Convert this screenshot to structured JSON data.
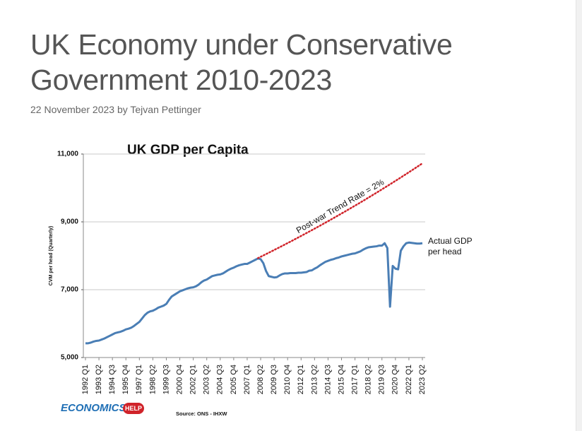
{
  "page": {
    "title": "UK Economy under Conservative Government 2010-2023",
    "byline": "22 November 2023 by Tejvan Pettinger"
  },
  "chart_data": {
    "type": "line",
    "title": "UK GDP per Capita",
    "y_label": "CVM per head (Quarterly)",
    "source": "Source: ONS - IHXW",
    "logo": {
      "text": "ECONOMICS",
      "badge": "HELP"
    },
    "grid": true,
    "ylim": [
      5000,
      11000
    ],
    "yticks": [
      {
        "value": 5000,
        "label": "5,000"
      },
      {
        "value": 7000,
        "label": "7,000"
      },
      {
        "value": 9000,
        "label": "9,000"
      },
      {
        "value": 11000,
        "label": "11,000"
      }
    ],
    "categories": [
      "1992 Q1",
      null,
      null,
      null,
      null,
      "1993 Q2",
      null,
      null,
      null,
      null,
      "1994 Q3",
      null,
      null,
      null,
      null,
      "1995 Q4",
      null,
      null,
      null,
      null,
      "1997 Q1",
      null,
      null,
      null,
      null,
      "1998 Q2",
      null,
      null,
      null,
      null,
      "1999 Q3",
      null,
      null,
      null,
      null,
      "2000 Q4",
      null,
      null,
      null,
      null,
      "2002 Q1",
      null,
      null,
      null,
      null,
      "2003 Q2",
      null,
      null,
      null,
      null,
      "2004 Q3",
      null,
      null,
      null,
      null,
      "2005 Q4",
      null,
      null,
      null,
      null,
      "2007 Q1",
      null,
      null,
      null,
      null,
      "2008 Q2",
      null,
      null,
      null,
      null,
      "2009 Q3",
      null,
      null,
      null,
      null,
      "2010 Q4",
      null,
      null,
      null,
      null,
      "2012 Q1",
      null,
      null,
      null,
      null,
      "2013 Q2",
      null,
      null,
      null,
      null,
      "2014 Q3",
      null,
      null,
      null,
      null,
      "2015 Q4",
      null,
      null,
      null,
      null,
      "2017 Q1",
      null,
      null,
      null,
      null,
      "2018 Q2",
      null,
      null,
      null,
      null,
      "2019 Q3",
      null,
      null,
      null,
      null,
      "2020 Q4",
      null,
      null,
      null,
      null,
      "2022 Q1",
      null,
      null,
      null,
      null,
      "2023 Q2"
    ],
    "series": [
      {
        "name": "Actual GDP per head",
        "color": "#4a7eb5",
        "style": "solid",
        "values": [
          5420,
          5420,
          5440,
          5470,
          5490,
          5500,
          5530,
          5560,
          5600,
          5640,
          5680,
          5720,
          5740,
          5760,
          5790,
          5830,
          5850,
          5880,
          5930,
          5990,
          6050,
          6150,
          6250,
          6320,
          6360,
          6380,
          6420,
          6470,
          6500,
          6530,
          6580,
          6700,
          6800,
          6850,
          6900,
          6950,
          6980,
          7010,
          7040,
          7060,
          7070,
          7100,
          7150,
          7220,
          7270,
          7300,
          7350,
          7400,
          7420,
          7440,
          7450,
          7480,
          7530,
          7580,
          7620,
          7650,
          7690,
          7720,
          7740,
          7760,
          7760,
          7800,
          7840,
          7880,
          7920,
          7900,
          7780,
          7550,
          7400,
          7380,
          7360,
          7370,
          7420,
          7460,
          7480,
          7480,
          7490,
          7490,
          7490,
          7500,
          7500,
          7510,
          7520,
          7560,
          7570,
          7620,
          7660,
          7720,
          7770,
          7820,
          7850,
          7880,
          7900,
          7930,
          7950,
          7980,
          8000,
          8020,
          8040,
          8060,
          8070,
          8100,
          8130,
          8180,
          8220,
          8250,
          8260,
          8270,
          8280,
          8300,
          8300,
          8370,
          8230,
          6500,
          7700,
          7620,
          7600,
          8150,
          8280,
          8370,
          8390,
          8380,
          8370,
          8360,
          8360,
          8370
        ]
      },
      {
        "name": "Post-war Trend Rate = 2%",
        "color": "#d0232a",
        "style": "dotted",
        "values": [
          null,
          null,
          null,
          null,
          null,
          null,
          null,
          null,
          null,
          null,
          null,
          null,
          null,
          null,
          null,
          null,
          null,
          null,
          null,
          null,
          null,
          null,
          null,
          null,
          null,
          null,
          null,
          null,
          null,
          null,
          null,
          null,
          null,
          null,
          null,
          null,
          null,
          null,
          null,
          null,
          null,
          null,
          null,
          null,
          null,
          null,
          null,
          null,
          null,
          null,
          null,
          null,
          null,
          null,
          null,
          null,
          null,
          null,
          null,
          null,
          null,
          null,
          null,
          null,
          7930,
          7970,
          8010,
          8049,
          8089,
          8129,
          8170,
          8210,
          8250,
          8291,
          8333,
          8374,
          8415,
          8457,
          8500,
          8542,
          8584,
          8627,
          8670,
          8712,
          8755,
          8799,
          8843,
          8886,
          8930,
          8975,
          9020,
          9064,
          9109,
          9155,
          9200,
          9246,
          9291,
          9338,
          9384,
          9431,
          9477,
          9524,
          9571,
          9619,
          9666,
          9715,
          9763,
          9812,
          9860,
          9909,
          9959,
          10008,
          10057,
          10107,
          10158,
          10208,
          10258,
          10309,
          10360,
          10412,
          10463,
          10515,
          10567,
          10620,
          10672,
          10725
        ]
      }
    ]
  }
}
